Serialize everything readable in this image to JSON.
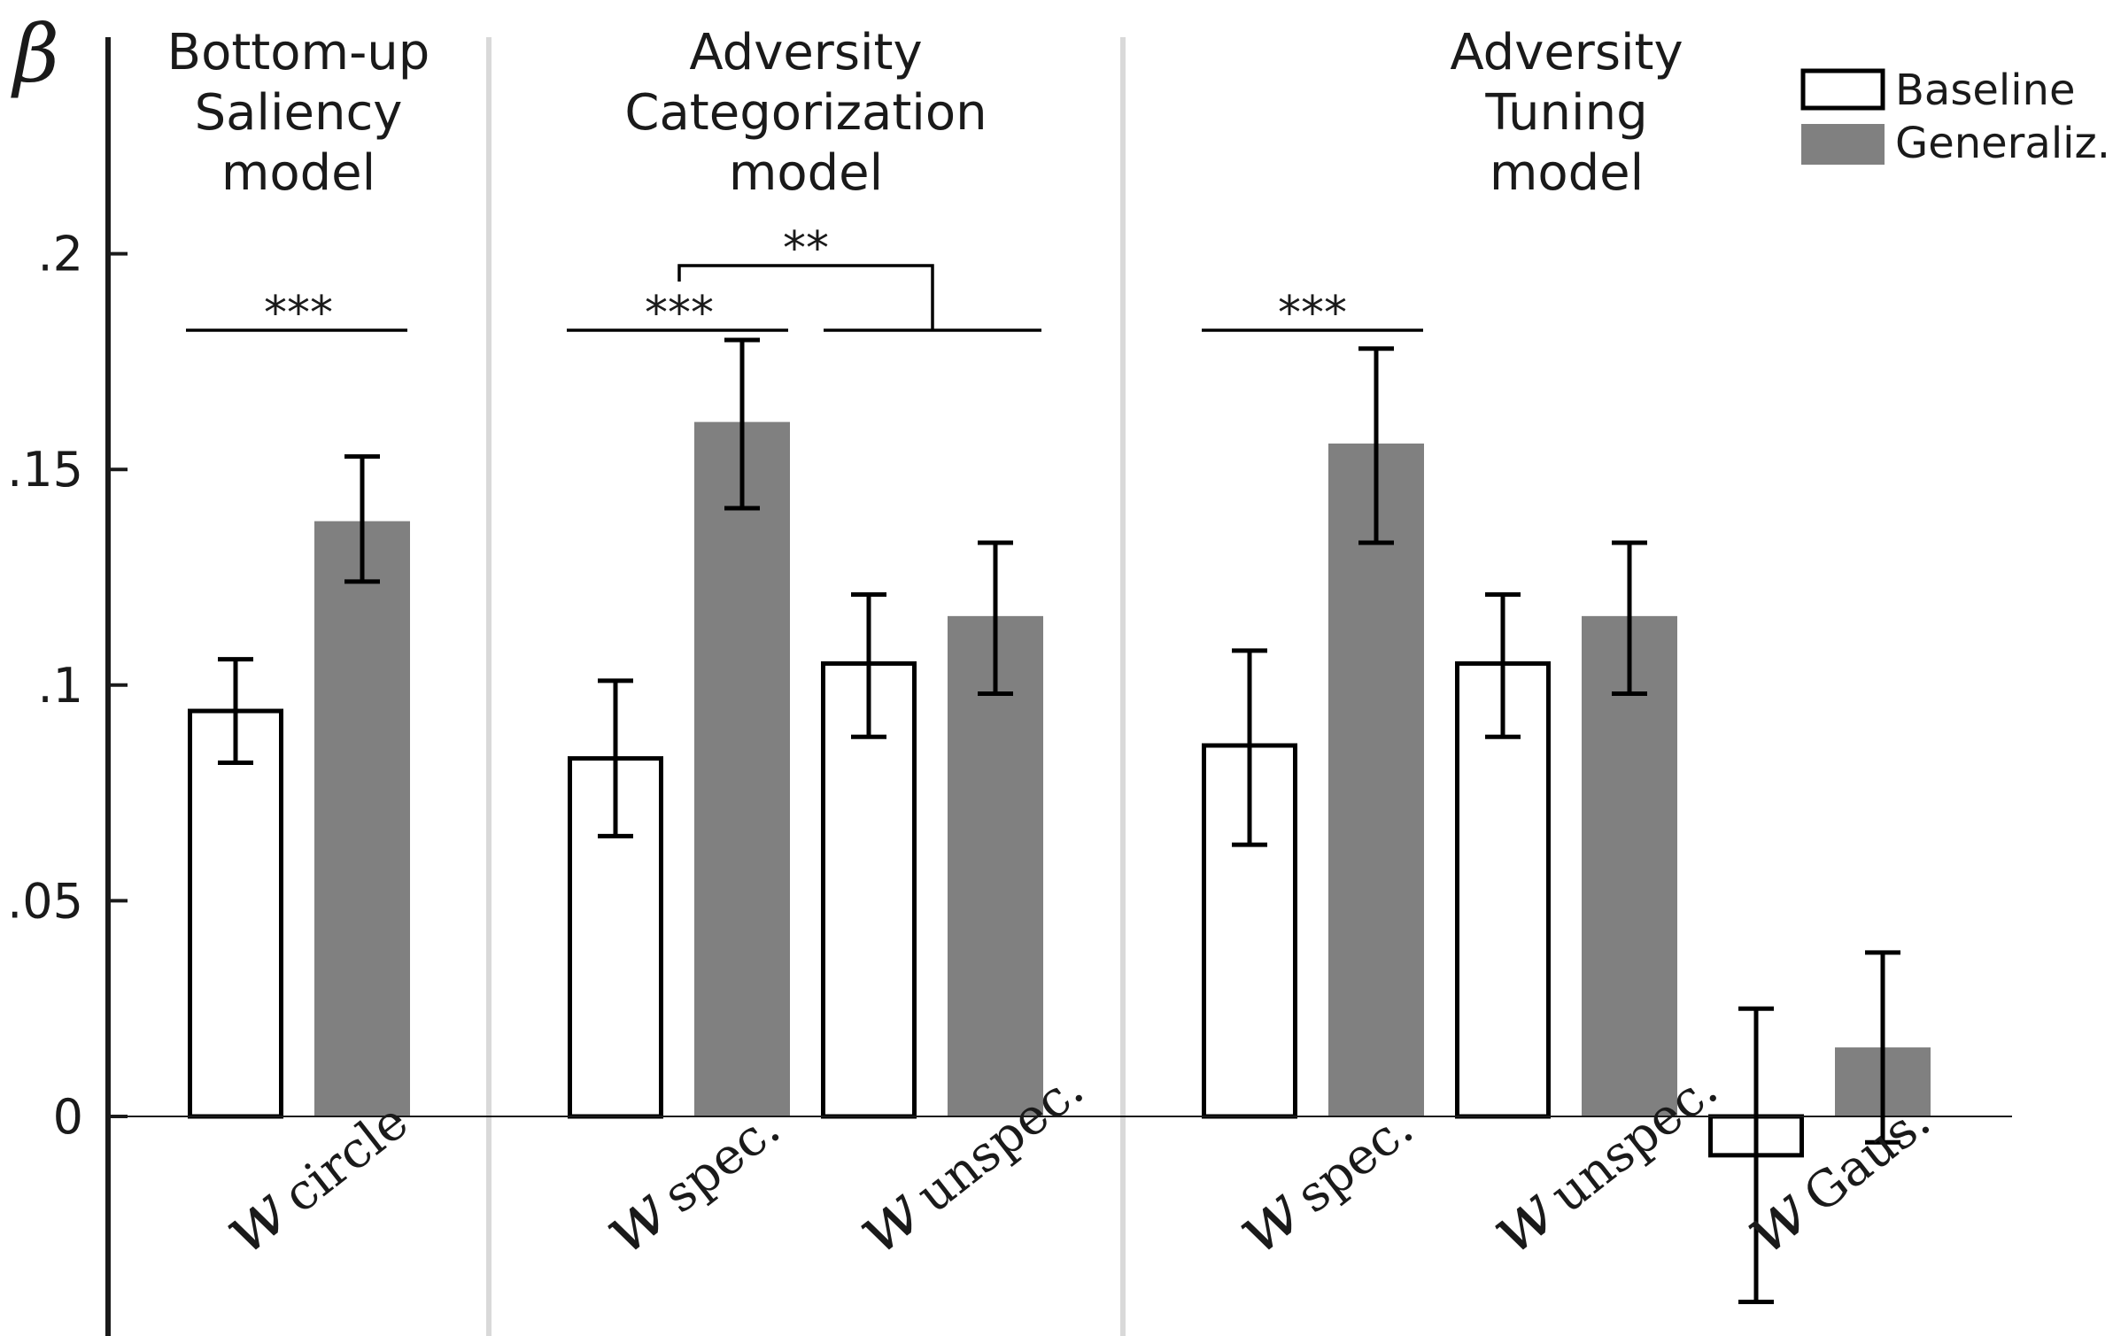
{
  "chart_data": {
    "type": "bar",
    "ylabel": "β",
    "ylim": [
      -0.045,
      0.255
    ],
    "yticks": [
      0,
      0.05,
      0.1,
      0.15,
      0.2
    ],
    "ytick_labels": [
      "0",
      ".05",
      ".1",
      ".15",
      ".2"
    ],
    "series": [
      {
        "name": "Baseline",
        "fill": "#ffffff",
        "stroke": "#000000"
      },
      {
        "name": "Generaliz.",
        "fill": "#808080",
        "stroke": "none"
      }
    ],
    "groups": [
      {
        "title": [
          "Bottom-up",
          "Saliency",
          "model"
        ]
      },
      {
        "title": [
          "Adversity",
          "Categorization",
          "model"
        ]
      },
      {
        "title": [
          "Adversity",
          "Tuning",
          "model"
        ]
      }
    ],
    "bars": [
      {
        "group": 0,
        "series": "Baseline",
        "value": 0.094,
        "err_low": 0.082,
        "err_high": 0.106
      },
      {
        "group": 0,
        "series": "Generaliz.",
        "value": 0.138,
        "err_low": 0.124,
        "err_high": 0.153
      },
      {
        "group": 1,
        "series": "Baseline",
        "value": 0.083,
        "err_low": 0.065,
        "err_high": 0.101
      },
      {
        "group": 1,
        "series": "Generaliz.",
        "value": 0.161,
        "err_low": 0.141,
        "err_high": 0.18
      },
      {
        "group": 1,
        "series": "Baseline",
        "value": 0.105,
        "err_low": 0.088,
        "err_high": 0.121
      },
      {
        "group": 1,
        "series": "Generaliz.",
        "value": 0.116,
        "err_low": 0.098,
        "err_high": 0.133
      },
      {
        "group": 2,
        "series": "Baseline",
        "value": 0.086,
        "err_low": 0.063,
        "err_high": 0.108
      },
      {
        "group": 2,
        "series": "Generaliz.",
        "value": 0.156,
        "err_low": 0.133,
        "err_high": 0.178
      },
      {
        "group": 2,
        "series": "Baseline",
        "value": 0.105,
        "err_low": 0.088,
        "err_high": 0.121
      },
      {
        "group": 2,
        "series": "Generaliz.",
        "value": 0.116,
        "err_low": 0.098,
        "err_high": 0.133
      },
      {
        "group": 2,
        "series": "Baseline",
        "value": -0.009,
        "err_low": -0.043,
        "err_high": 0.025
      },
      {
        "group": 2,
        "series": "Generaliz.",
        "value": 0.016,
        "err_low": -0.006,
        "err_high": 0.038
      }
    ],
    "categories": [
      {
        "w": "w",
        "sub": "circle"
      },
      {
        "w": "w",
        "sub": "spec."
      },
      {
        "w": "w",
        "sub": "unspec."
      },
      {
        "w": "w",
        "sub": "spec."
      },
      {
        "w": "w",
        "sub": "unspec."
      },
      {
        "w": "w",
        "sub": "Gaus."
      }
    ],
    "significance": [
      {
        "label": "***"
      },
      {
        "label": "***"
      },
      {
        "label": "**"
      },
      {
        "label": "***"
      }
    ],
    "legend_position": "top-right"
  }
}
